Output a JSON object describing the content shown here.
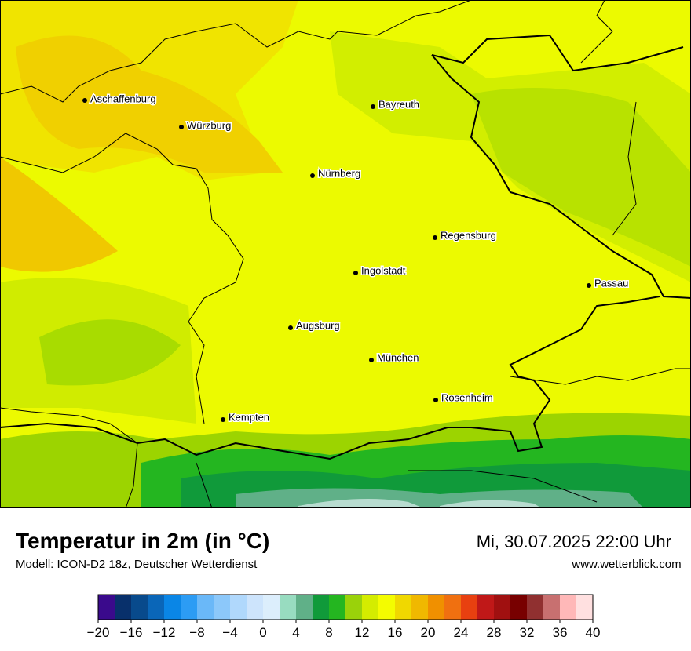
{
  "map": {
    "cities": [
      "Aschaffenburg",
      "Würzburg",
      "Bayreuth",
      "Nürnberg",
      "Regensburg",
      "Ingolstadt",
      "Passau",
      "Augsburg",
      "München",
      "Rosenheim",
      "Kempten"
    ]
  },
  "footer": {
    "title": "Temperatur in 2m (in °C)",
    "subtitle": "Modell: ICON-D2 18z, Deutscher Wetterdienst",
    "datetime": "Mi, 30.07.2025 22:00 Uhr",
    "website": "www.wetterblick.com"
  },
  "colorbar": {
    "lim": [
      -20,
      40
    ],
    "ticks": [
      {
        "value": -20,
        "label": "−20"
      },
      {
        "value": -16,
        "label": "−16"
      },
      {
        "value": -12,
        "label": "−12"
      },
      {
        "value": -8,
        "label": "−8"
      },
      {
        "value": -4,
        "label": "−4"
      },
      0,
      4,
      8,
      12,
      16,
      20,
      24,
      28,
      32,
      36,
      40
    ],
    "colors": [
      "#3a0a8c",
      "#08306b",
      "#084a8c",
      "#0a66b8",
      "#0a86e6",
      "#2c9cf4",
      "#6ab8f8",
      "#8cc8fa",
      "#b0d8fc",
      "#cde4fc",
      "#dceefc",
      "#98dcc0",
      "#60b088",
      "#109a3a",
      "#24b620",
      "#9ad20a",
      "#d4ec00",
      "#f4fc00",
      "#f0d800",
      "#f0b800",
      "#f09000",
      "#f07010",
      "#e84010",
      "#c01818",
      "#a01010",
      "#780000",
      "#903030",
      "#c87070",
      "#ffb8b8",
      "#ffe0e0"
    ]
  }
}
